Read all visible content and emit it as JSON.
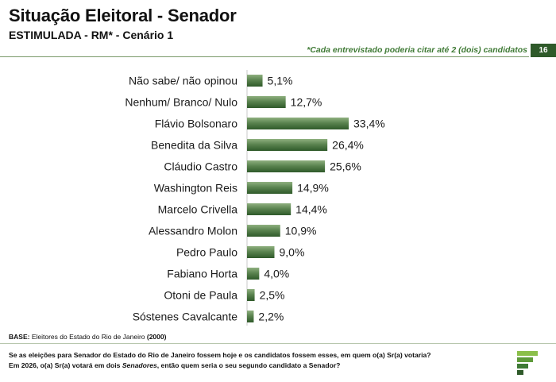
{
  "header": {
    "title": "Situação Eleitoral - Senador",
    "subtitle": "ESTIMULADA - RM* - Cenário 1",
    "note": "*Cada entrevistado poderia citar até 2 (dois) candidatos",
    "page_number": "16"
  },
  "footer": {
    "base_label": "BASE:",
    "base_text": " Eleitores do Estado do Rio de Janeiro ",
    "base_count": "(2000)",
    "question_line1": "Se as eleições para Senador do Estado do Rio de Janeiro fossem hoje e os candidatos fossem esses, em quem o(a) Sr(a) votaria?",
    "question_line2_a": "Em 2026, o(a) Sr(a) votará em dois ",
    "question_line2_em": "Senadores",
    "question_line2_b": ", então quem seria o seu segundo candidato a Senador?"
  },
  "colors": {
    "bar_light": "#6f9560",
    "bar_dark": "#2f5a2a",
    "accent": "#3f7a35"
  },
  "chart_data": {
    "type": "bar",
    "orientation": "horizontal",
    "categories": [
      "Não sabe/ não opinou",
      "Nenhum/ Branco/ Nulo",
      "Flávio Bolsonaro",
      "Benedita da Silva",
      "Cláudio Castro",
      "Washington Reis",
      "Marcelo Crivella",
      "Alessandro Molon",
      "Pedro Paulo",
      "Fabiano Horta",
      "Otoni de Paula",
      "Sóstenes Cavalcante"
    ],
    "values": [
      5.1,
      12.7,
      33.4,
      26.4,
      25.6,
      14.9,
      14.4,
      10.9,
      9.0,
      4.0,
      2.5,
      2.2
    ],
    "value_labels": [
      "5,1%",
      "12,7%",
      "33,4%",
      "26,4%",
      "25,6%",
      "14,9%",
      "14,4%",
      "10,9%",
      "9,0%",
      "4,0%",
      "2,5%",
      "2,2%"
    ],
    "unit": "%",
    "xlim": [
      0,
      33.4
    ],
    "grid": false,
    "legend": "none"
  }
}
